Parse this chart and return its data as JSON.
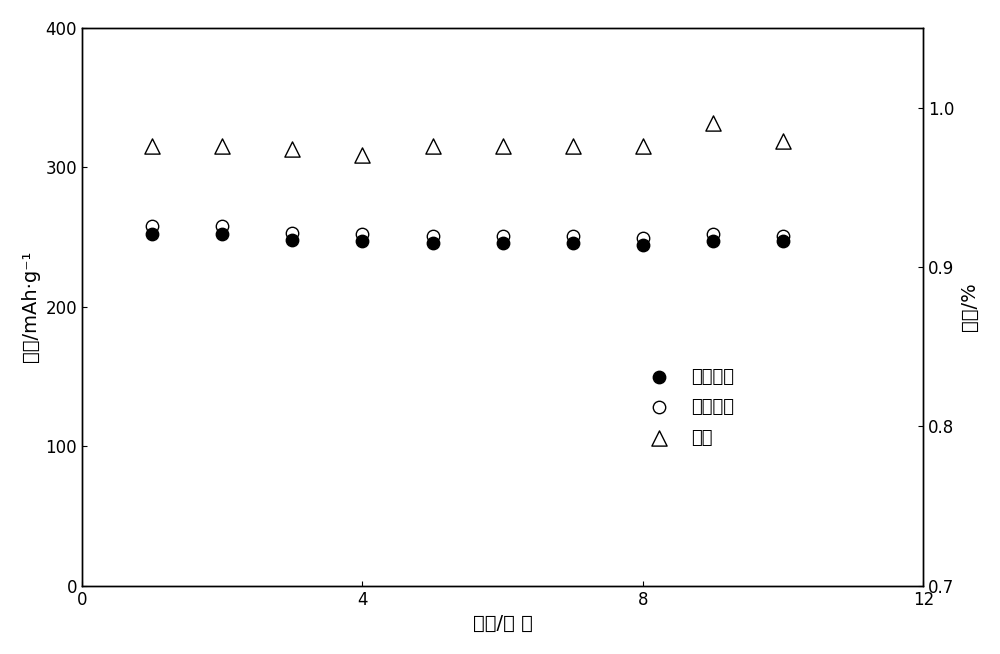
{
  "x": [
    1,
    2,
    3,
    4,
    5,
    6,
    7,
    8,
    9,
    10
  ],
  "discharge_capacity": [
    252,
    252,
    248,
    247,
    246,
    246,
    246,
    244,
    247,
    247
  ],
  "charge_capacity": [
    258,
    258,
    253,
    252,
    251,
    251,
    251,
    249,
    252,
    251
  ],
  "efficiency": [
    0.976,
    0.976,
    0.974,
    0.97,
    0.976,
    0.976,
    0.976,
    0.976,
    0.99,
    0.979
  ],
  "xlim": [
    0,
    12
  ],
  "ylim_left": [
    0,
    400
  ],
  "ylim_right": [
    0.7,
    1.05
  ],
  "yticks_left": [
    0,
    100,
    200,
    300,
    400
  ],
  "yticks_right": [
    0.7,
    0.8,
    0.9,
    1.0
  ],
  "xticks": [
    0,
    4,
    8,
    12
  ],
  "xlabel": "循环/次 数",
  "ylabel_left": "容量/mAh·g⁻¹",
  "ylabel_right": "效率/%",
  "legend_labels": [
    "放电容量",
    "充电容量",
    "效率"
  ],
  "background_color": "#ffffff",
  "marker_size_circle": 80,
  "marker_size_triangle": 120,
  "figsize": [
    10.0,
    6.54
  ],
  "dpi": 100
}
